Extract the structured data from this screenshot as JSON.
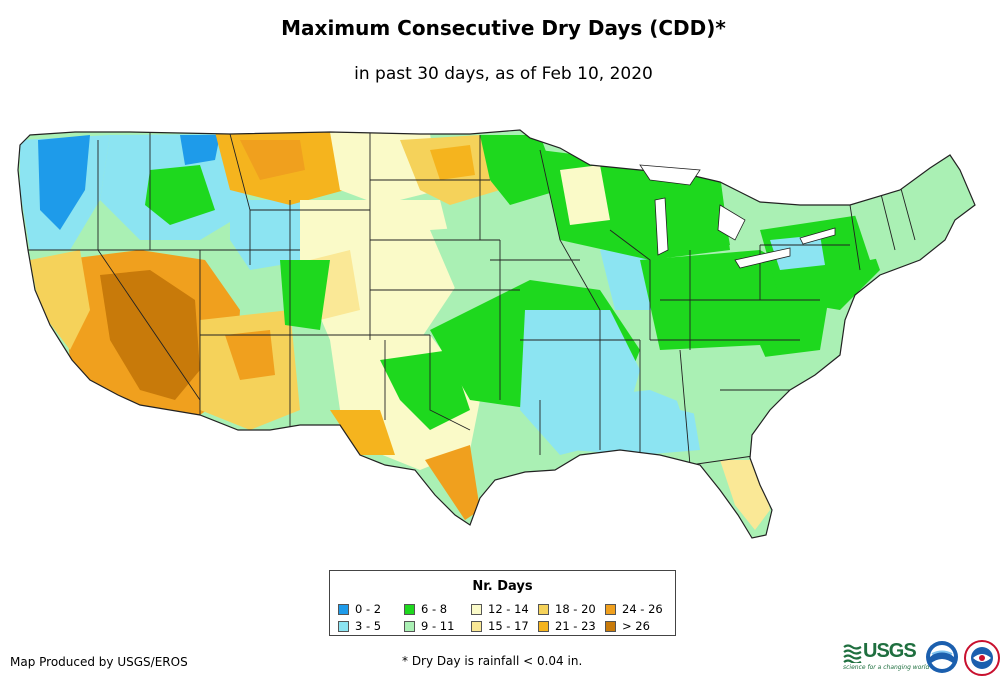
{
  "title": "Maximum Consecutive Dry Days (CDD)*",
  "subtitle": "in past 30 days, as of Feb 10, 2020",
  "legend": {
    "title": "Nr. Days",
    "items": [
      {
        "label": "0 - 2",
        "color": "#1e9bea"
      },
      {
        "label": "3 - 5",
        "color": "#8ce4f2"
      },
      {
        "label": "6 - 8",
        "color": "#1ed81e"
      },
      {
        "label": "9 - 11",
        "color": "#aaf0b4"
      },
      {
        "label": "12 - 14",
        "color": "#fafac8"
      },
      {
        "label": "15 - 17",
        "color": "#fae896"
      },
      {
        "label": "18 - 20",
        "color": "#f5d25a"
      },
      {
        "label": "21 - 23",
        "color": "#f5b41e"
      },
      {
        "label": "24 - 26",
        "color": "#f0a01e"
      },
      {
        "label": "> 26",
        "color": "#c87a0a"
      }
    ]
  },
  "footer": {
    "credit": "Map Produced by USGS/EROS",
    "note": "* Dry Day is rainfall < 0.04 in."
  },
  "logos": {
    "usgs": "USGS",
    "usgs_tagline": "science for a changing world"
  }
}
